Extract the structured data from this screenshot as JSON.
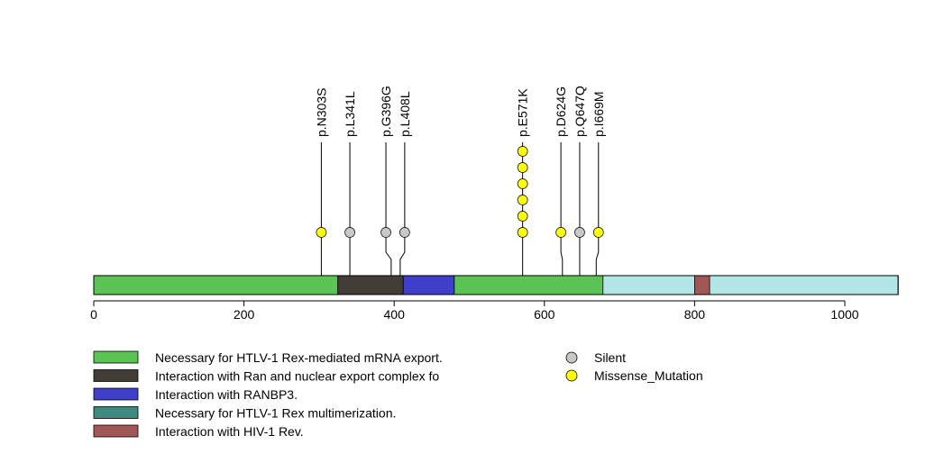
{
  "chart_data": {
    "type": "lollipop",
    "title": "",
    "protein_length": 1071,
    "x_ticks": [
      0,
      200,
      400,
      600,
      800,
      1000
    ],
    "background_color": "#b2e5e5",
    "domains": [
      {
        "start": 0,
        "end": 325,
        "color": "#5bc454",
        "legend": "Necessary for HTLV-1 Rex-mediated mRNA export."
      },
      {
        "start": 325,
        "end": 412,
        "color": "#433d37",
        "legend": "Interaction with Ran and nuclear export complex fo"
      },
      {
        "start": 412,
        "end": 480,
        "color": "#3f3fcc",
        "legend": "Interaction with RANBP3."
      },
      {
        "start": 480,
        "end": 678,
        "color": "#5bc454"
      },
      {
        "start": 800,
        "end": 820,
        "color": "#a35656",
        "legend": "Interaction with HIV-1 Rev."
      }
    ],
    "domain_legend": [
      {
        "label": "Necessary for HTLV-1 Rex-mediated mRNA export.",
        "color": "#5bc454"
      },
      {
        "label": "Interaction with Ran and nuclear export complex fo",
        "color": "#433d37"
      },
      {
        "label": "Interaction with RANBP3.",
        "color": "#3f3fcc"
      },
      {
        "label": "Necessary for HTLV-1 Rex multimerization.",
        "color": "#3e8a80"
      },
      {
        "label": "Interaction with HIV-1 Rev.",
        "color": "#a35656"
      }
    ],
    "mutation_legend": [
      {
        "label": "Silent",
        "color": "#c8c8c8"
      },
      {
        "label": "Missense_Mutation",
        "color": "#ffff00"
      }
    ],
    "mutations": [
      {
        "label": "p.N303S",
        "position": 303,
        "count": 1,
        "type": "Missense_Mutation",
        "display_position": 303
      },
      {
        "label": "p.L341L",
        "position": 341,
        "count": 1,
        "type": "Silent",
        "display_position": 341
      },
      {
        "label": "p.G396G",
        "position": 396,
        "count": 1,
        "type": "Silent",
        "display_position": 389
      },
      {
        "label": "p.L408L",
        "position": 408,
        "count": 1,
        "type": "Silent",
        "display_position": 414
      },
      {
        "label": "p.E571K",
        "position": 571,
        "count": 6,
        "type": "Missense_Mutation",
        "display_position": 571
      },
      {
        "label": "p.D624G",
        "position": 624,
        "count": 1,
        "type": "Missense_Mutation",
        "display_position": 622
      },
      {
        "label": "p.Q647Q",
        "position": 647,
        "count": 1,
        "type": "Silent",
        "display_position": 647
      },
      {
        "label": "p.I669M",
        "position": 669,
        "count": 1,
        "type": "Missense_Mutation",
        "display_position": 672
      }
    ]
  }
}
